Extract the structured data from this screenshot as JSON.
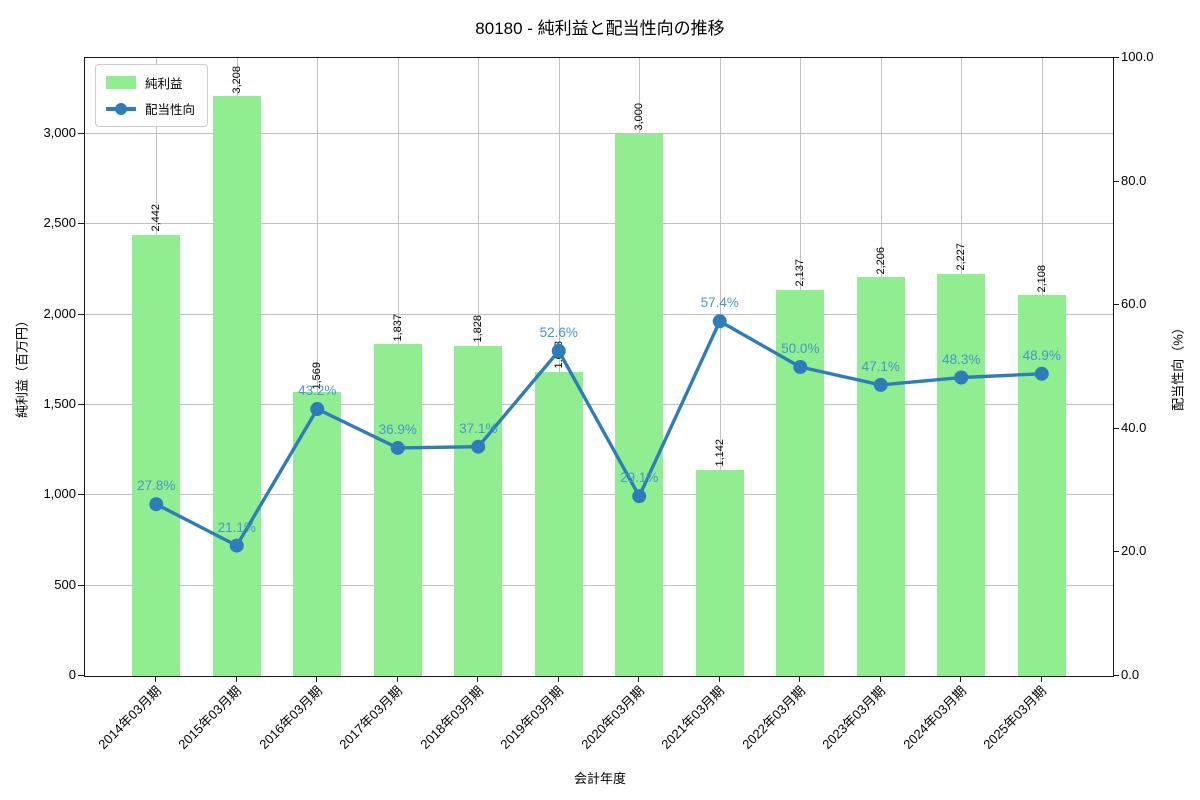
{
  "title": "80180 - 純利益と配当性向の推移",
  "legend": {
    "items": [
      {
        "label": "純利益",
        "type": "bar"
      },
      {
        "label": "配当性向",
        "type": "line"
      }
    ]
  },
  "axes": {
    "x_title": "会計年度",
    "y_left_title": "純利益（百万円）",
    "y_right_title": "配当性向（%）",
    "y_left_ticks": {
      "values": [
        0,
        500,
        1000,
        1500,
        2000,
        2500,
        3000
      ],
      "labels": [
        "0",
        "500",
        "1,000",
        "1,500",
        "2,000",
        "2,500",
        "3,000"
      ]
    },
    "y_right_ticks": {
      "values": [
        0,
        20,
        40,
        60,
        80,
        100
      ],
      "labels": [
        "0.0",
        "20.0",
        "40.0",
        "60.0",
        "80.0",
        "100.0"
      ]
    }
  },
  "chart_data": {
    "type": "bar",
    "title": "80180 - 純利益と配当性向の推移",
    "xlabel": "会計年度",
    "ylabel_left": "純利益（百万円）",
    "ylabel_right": "配当性向（%）",
    "ylim_left": [
      0,
      3420
    ],
    "ylim_right": [
      0,
      100
    ],
    "grid": true,
    "legend_position": "upper left",
    "categories": [
      "2014年03月期",
      "2015年03月期",
      "2016年03月期",
      "2017年03月期",
      "2018年03月期",
      "2019年03月期",
      "2020年03月期",
      "2021年03月期",
      "2022年03月期",
      "2023年03月期",
      "2024年03月期",
      "2025年03月期"
    ],
    "series": [
      {
        "name": "純利益",
        "type": "bar",
        "axis": "left",
        "color": "#90ee90",
        "values": [
          2442,
          3208,
          1569,
          1837,
          1828,
          1683,
          3000,
          1142,
          2137,
          2206,
          2227,
          2108
        ],
        "value_labels": [
          "2,442",
          "3,208",
          "1,569",
          "1,837",
          "1,828",
          "1,683",
          "3,000",
          "1,142",
          "2,137",
          "2,206",
          "2,227",
          "2,108"
        ]
      },
      {
        "name": "配当性向",
        "type": "line",
        "axis": "right",
        "color": "#2d7dbc",
        "label_color": "#4696cd",
        "values": [
          27.8,
          21.1,
          43.2,
          36.9,
          37.1,
          52.6,
          29.1,
          57.4,
          50.0,
          47.1,
          48.3,
          48.9
        ],
        "value_labels": [
          "27.8%",
          "21.1%",
          "43.2%",
          "36.9%",
          "37.1%",
          "52.6%",
          "29.1%",
          "57.4%",
          "50.0%",
          "47.1%",
          "48.3%",
          "48.9%"
        ]
      }
    ]
  },
  "colors": {
    "bar": "#90ee90",
    "line": "#2d7dbc",
    "pct_label": "#4696cd",
    "grid": "#c0c0c0",
    "spine": "#1a1a1a",
    "background": "#ffffff"
  }
}
